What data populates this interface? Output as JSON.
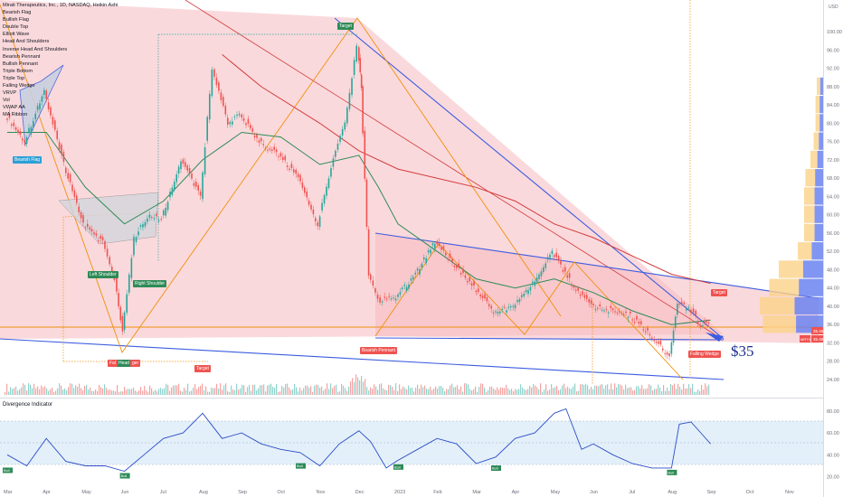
{
  "header": {
    "title": "Mirati Therapeutics, Inc., 1D, NASDAQ, Heikin Ashi",
    "currency": "USD"
  },
  "indicator_list": [
    "Bearish Flag",
    "Bullish Flag",
    "Double Top",
    "Elliott Wave",
    "Head And Shoulders",
    "Inverse Head And Shoulders",
    "Bearish Pennant",
    "Bullish Pennant",
    "Triple Bottom",
    "Triple Top",
    "Falling Wedge",
    "VRVP",
    "Vol",
    "VWAP AA",
    "MA Ribbon"
  ],
  "pattern_labels": {
    "bearish_flag": "Bearish Flag",
    "left_shoulder": "Left Shoulder",
    "right_shoulder": "Right Shoulder",
    "head": "Head",
    "fal": "Fal",
    "ger": "ger",
    "target1": "Target",
    "target2": "Target",
    "target3": "Target",
    "bearish_pennant": "Bearish Pennant",
    "falling_wedge": "Falling Wedge"
  },
  "annotation": {
    "price_note": "$35"
  },
  "price_tags": {
    "tag1": "35.46",
    "tag2": "35.49",
    "tag3": "MRTX"
  },
  "oscillator": {
    "title": "Divergence Indicator",
    "bull_label": "Bull"
  },
  "colors": {
    "up": "#26a69a",
    "down": "#ef5350",
    "ma_green": "#2e8b57",
    "ma_red": "#d23c3c",
    "trend_blue": "#3d5ce0",
    "pattern_orange": "#f0900b",
    "wedge_fill": "#f8c8cc",
    "osc_line": "#2b4cc8"
  },
  "chart_data": [
    {
      "type": "line",
      "title": "Mirati Therapeutics, Inc., 1D, NASDAQ, Heikin Ashi",
      "x": [
        "Mar",
        "Apr",
        "May",
        "Jun",
        "Jul",
        "Aug",
        "Sep",
        "Oct",
        "Nov",
        "Dec",
        "2023",
        "Feb",
        "Mar",
        "Apr",
        "May",
        "Jun",
        "Jul",
        "Aug",
        "Sep",
        "Oct",
        "Nov"
      ],
      "y_ticks": [
        24,
        28,
        32,
        36,
        40,
        44,
        48,
        52,
        56,
        60,
        64,
        68,
        72,
        76,
        80,
        84,
        88,
        92,
        96,
        100
      ],
      "ylim": [
        24,
        102
      ],
      "series": [
        {
          "name": "Price",
          "points": [
            [
              0,
              82
            ],
            [
              0.5,
              76
            ],
            [
              1,
              87
            ],
            [
              1.5,
              71
            ],
            [
              2,
              58
            ],
            [
              2.5,
              54
            ],
            [
              2.8,
              46
            ],
            [
              3,
              34
            ],
            [
              3.3,
              55
            ],
            [
              3.7,
              60
            ],
            [
              4,
              59
            ],
            [
              4.5,
              72
            ],
            [
              5,
              64
            ],
            [
              5.3,
              92
            ],
            [
              5.7,
              80
            ],
            [
              6,
              82
            ],
            [
              6.5,
              76
            ],
            [
              7,
              73
            ],
            [
              7.5,
              68
            ],
            [
              8,
              58
            ],
            [
              8.4,
              72
            ],
            [
              8.7,
              80
            ],
            [
              9,
              97
            ],
            [
              9.1,
              88
            ],
            [
              9.3,
              47
            ],
            [
              9.6,
              41
            ],
            [
              10,
              42
            ],
            [
              10.5,
              47
            ],
            [
              11,
              54
            ],
            [
              11.5,
              49
            ],
            [
              12,
              44
            ],
            [
              12.5,
              39
            ],
            [
              13,
              40
            ],
            [
              13.5,
              45
            ],
            [
              14,
              52
            ],
            [
              14.5,
              45
            ],
            [
              15,
              40
            ],
            [
              15.5,
              39
            ],
            [
              16,
              38
            ],
            [
              16.5,
              34
            ],
            [
              17,
              29
            ],
            [
              17.2,
              40
            ],
            [
              17.5,
              40
            ],
            [
              17.8,
              36
            ],
            [
              18,
              36
            ]
          ]
        },
        {
          "name": "MA Green",
          "points": [
            [
              0,
              78
            ],
            [
              1,
              78
            ],
            [
              2,
              66
            ],
            [
              3,
              58
            ],
            [
              4,
              63
            ],
            [
              5,
              72
            ],
            [
              6,
              78
            ],
            [
              7,
              77
            ],
            [
              8,
              71
            ],
            [
              9,
              73
            ],
            [
              9.5,
              66
            ],
            [
              10,
              58
            ],
            [
              11,
              52
            ],
            [
              12,
              46
            ],
            [
              13,
              44
            ],
            [
              14,
              46
            ],
            [
              15,
              43
            ],
            [
              16,
              39
            ],
            [
              17,
              36
            ],
            [
              18,
              37
            ]
          ]
        },
        {
          "name": "MA Red",
          "points": [
            [
              5.5,
              95
            ],
            [
              6.5,
              88
            ],
            [
              8,
              80
            ],
            [
              9,
              74
            ],
            [
              10,
              70
            ],
            [
              12,
              66
            ],
            [
              13,
              63
            ],
            [
              14,
              58
            ],
            [
              15,
              55
            ],
            [
              16,
              51
            ],
            [
              17,
              47
            ],
            [
              18,
              45
            ]
          ]
        }
      ],
      "volume_profile_prices": [
        36,
        40,
        44,
        48,
        52,
        56,
        60,
        64,
        68,
        72,
        76,
        80,
        84,
        88
      ],
      "volume_profile_values": [
        95,
        100,
        85,
        70,
        40,
        30,
        30,
        30,
        28,
        20,
        15,
        12,
        12,
        10
      ]
    },
    {
      "type": "line",
      "title": "Divergence Indicator",
      "x": [
        "Mar",
        "Apr",
        "May",
        "Jun",
        "Jul",
        "Aug",
        "Sep",
        "Oct",
        "Nov",
        "Dec",
        "2023",
        "Feb",
        "Mar",
        "Apr",
        "May",
        "Jun",
        "Jul",
        "Aug",
        "Sep",
        "Oct",
        "Nov"
      ],
      "y_ticks": [
        20,
        40,
        60,
        80
      ],
      "ylim": [
        18,
        84
      ],
      "series": [
        {
          "name": "Divergence Indicator",
          "points": [
            [
              0,
              40
            ],
            [
              0.5,
              30
            ],
            [
              1,
              55
            ],
            [
              1.5,
              34
            ],
            [
              2,
              30
            ],
            [
              2.5,
              30
            ],
            [
              3,
              25
            ],
            [
              3.5,
              40
            ],
            [
              4,
              55
            ],
            [
              4.5,
              60
            ],
            [
              5,
              78
            ],
            [
              5.5,
              55
            ],
            [
              6,
              60
            ],
            [
              6.5,
              50
            ],
            [
              7,
              45
            ],
            [
              7.5,
              42
            ],
            [
              8,
              30
            ],
            [
              8.5,
              50
            ],
            [
              9,
              62
            ],
            [
              9.3,
              52
            ],
            [
              9.7,
              28
            ],
            [
              10,
              35
            ],
            [
              10.5,
              45
            ],
            [
              11,
              55
            ],
            [
              11.5,
              50
            ],
            [
              12,
              32
            ],
            [
              12.5,
              38
            ],
            [
              13,
              55
            ],
            [
              13.5,
              60
            ],
            [
              14,
              78
            ],
            [
              14.3,
              82
            ],
            [
              14.7,
              45
            ],
            [
              15,
              50
            ],
            [
              15.5,
              40
            ],
            [
              16,
              32
            ],
            [
              16.5,
              28
            ],
            [
              17,
              28
            ],
            [
              17.2,
              68
            ],
            [
              17.5,
              70
            ],
            [
              17.8,
              58
            ],
            [
              18,
              50
            ]
          ]
        }
      ]
    }
  ]
}
